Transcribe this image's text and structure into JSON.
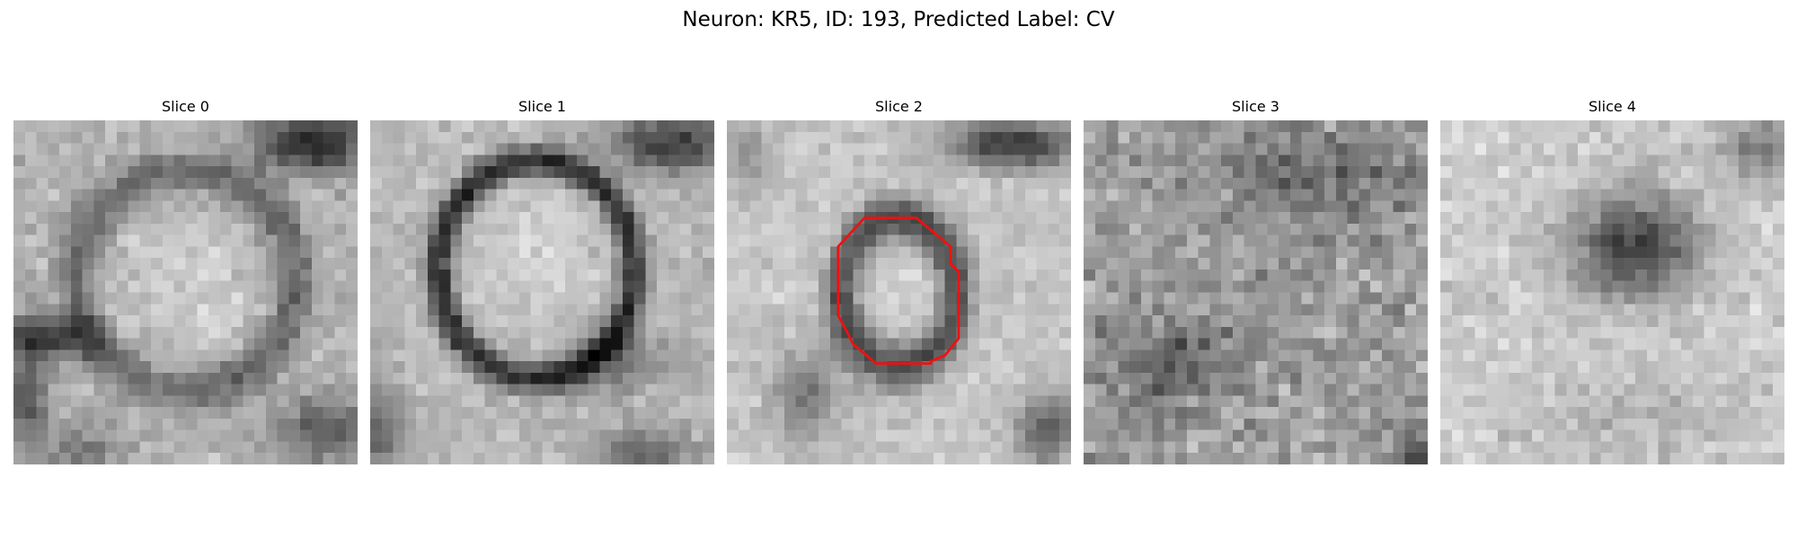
{
  "figure": {
    "title": "Neuron: KR5, ID: 193, Predicted Label: CV"
  },
  "panels": [
    {
      "title": "Slice 0"
    },
    {
      "title": "Slice 1"
    },
    {
      "title": "Slice 2"
    },
    {
      "title": "Slice 3"
    },
    {
      "title": "Slice 4"
    }
  ],
  "overlay": {
    "panel": "Slice 2",
    "contour_color": "#ee1111"
  },
  "colormap": "gray"
}
